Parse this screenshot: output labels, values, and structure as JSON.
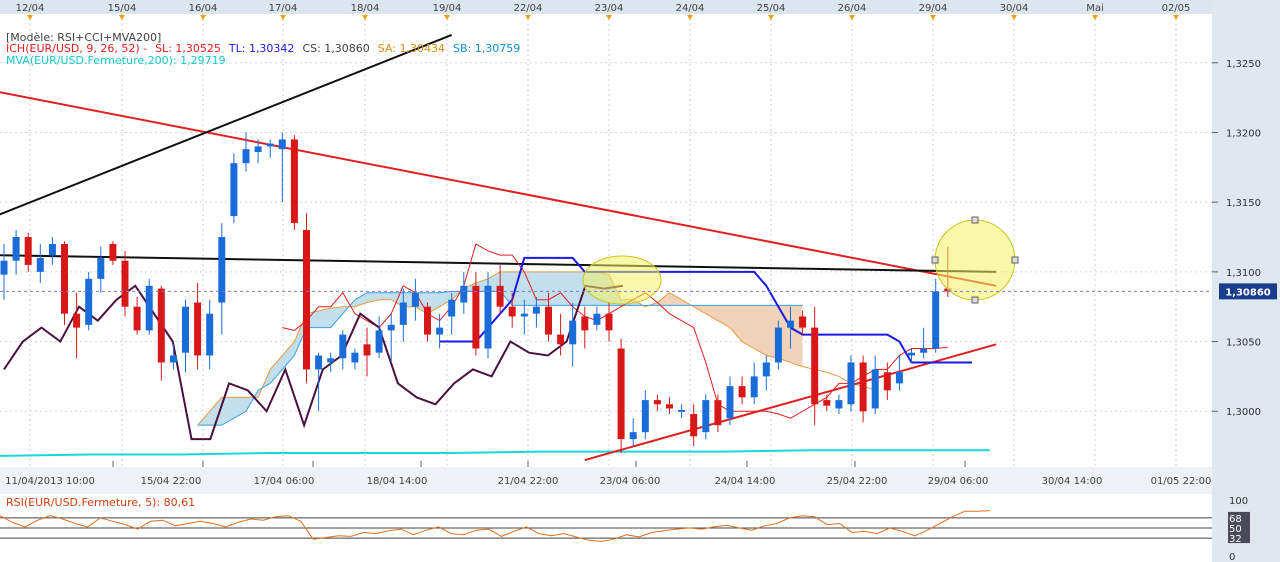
{
  "top_dates": [
    "12/04",
    "15/04",
    "16/04",
    "17/04",
    "18/04",
    "19/04",
    "22/04",
    "23/04",
    "24/04",
    "25/04",
    "26/04",
    "29/04",
    "30/04",
    "Mai",
    "02/05"
  ],
  "bottom_dates": [
    "11/04/2013 10:00",
    "15/04 22:00",
    "17/04 06:00",
    "18/04 14:00",
    "21/04 22:00",
    "23/04 06:00",
    "24/04 14:00",
    "25/04 22:00",
    "29/04 06:00",
    "30/04 14:00",
    "01/05 22:00"
  ],
  "legend": {
    "model": "[Modèle: RSI+CCI+MVA200]",
    "ich": "ICH(EUR/USD, 9, 26, 52) -",
    "sl": "SL: 1,30525",
    "tl": "TL: 1,30342",
    "cs": "CS: 1,30860",
    "sa": "SA: 1,30434",
    "sb": "SB: 1,30759",
    "mva": "MVA(EUR/USD.Fermeture,200): 1,29719",
    "colors": {
      "ich": "#e02020",
      "tl": "#1a1ae0",
      "cs": "#404040",
      "sa": "#e08a20",
      "sb": "#1a8cd8",
      "mva": "#18d8d8"
    }
  },
  "price_axis": {
    "ticks": [
      "1,3250",
      "1,3200",
      "1,3150",
      "1,3100",
      "1,3050",
      "1,3000"
    ],
    "current": "1,30860"
  },
  "rsi": {
    "label": "RSI(EUR/USD.Fermeture, 5): 80,61",
    "ticks": [
      "100",
      "68",
      "50",
      "32",
      "0"
    ]
  },
  "chart_data": {
    "type": "candlestick",
    "pair": "EUR/USD",
    "ylim": [
      1.296,
      1.3285
    ],
    "candles": [
      [
        1.3098,
        1.312,
        1.308,
        1.3108
      ],
      [
        1.3108,
        1.313,
        1.3098,
        1.3125
      ],
      [
        1.3125,
        1.3128,
        1.31,
        1.3105
      ],
      [
        1.31,
        1.312,
        1.3092,
        1.311
      ],
      [
        1.3112,
        1.3125,
        1.3105,
        1.312
      ],
      [
        1.312,
        1.3122,
        1.3062,
        1.307
      ],
      [
        1.307,
        1.3085,
        1.3038,
        1.306
      ],
      [
        1.3062,
        1.31,
        1.3058,
        1.3095
      ],
      [
        1.3095,
        1.3118,
        1.3085,
        1.311
      ],
      [
        1.312,
        1.3122,
        1.3105,
        1.3108
      ],
      [
        1.3108,
        1.3115,
        1.3068,
        1.3075
      ],
      [
        1.3075,
        1.3082,
        1.3055,
        1.3058
      ],
      [
        1.3058,
        1.3095,
        1.3055,
        1.309
      ],
      [
        1.3088,
        1.309,
        1.3022,
        1.3035
      ],
      [
        1.3035,
        1.3048,
        1.303,
        1.304
      ],
      [
        1.3042,
        1.308,
        1.3028,
        1.3075
      ],
      [
        1.3078,
        1.3092,
        1.303,
        1.304
      ],
      [
        1.304,
        1.308,
        1.303,
        1.307
      ],
      [
        1.3078,
        1.3135,
        1.3055,
        1.3125
      ],
      [
        1.314,
        1.3185,
        1.3135,
        1.3178
      ],
      [
        1.3178,
        1.32,
        1.3172,
        1.3188
      ],
      [
        1.3186,
        1.3195,
        1.3178,
        1.319
      ],
      [
        1.319,
        1.3195,
        1.3182,
        1.3192
      ],
      [
        1.3188,
        1.32,
        1.315,
        1.3195
      ],
      [
        1.3195,
        1.3198,
        1.313,
        1.3135
      ],
      [
        1.313,
        1.3142,
        1.302,
        1.303
      ],
      [
        1.303,
        1.3042,
        1.3,
        1.304
      ],
      [
        1.3035,
        1.3042,
        1.3028,
        1.3038
      ],
      [
        1.3038,
        1.3058,
        1.303,
        1.3055
      ],
      [
        1.3035,
        1.3045,
        1.303,
        1.3042
      ],
      [
        1.3048,
        1.306,
        1.3025,
        1.304
      ],
      [
        1.3042,
        1.3068,
        1.3038,
        1.3058
      ],
      [
        1.3058,
        1.307,
        1.3035,
        1.3062
      ],
      [
        1.3062,
        1.3088,
        1.305,
        1.3078
      ],
      [
        1.3075,
        1.3095,
        1.3065,
        1.3085
      ],
      [
        1.3075,
        1.3078,
        1.305,
        1.3055
      ],
      [
        1.3055,
        1.307,
        1.3045,
        1.306
      ],
      [
        1.3068,
        1.3085,
        1.3055,
        1.308
      ],
      [
        1.3078,
        1.31,
        1.307,
        1.309
      ],
      [
        1.309,
        1.31,
        1.304,
        1.3045
      ],
      [
        1.3045,
        1.31,
        1.3038,
        1.309
      ],
      [
        1.309,
        1.3105,
        1.307,
        1.3075
      ],
      [
        1.3075,
        1.3085,
        1.306,
        1.3068
      ],
      [
        1.3068,
        1.308,
        1.3055,
        1.307
      ],
      [
        1.307,
        1.3082,
        1.306,
        1.3075
      ],
      [
        1.3075,
        1.3085,
        1.305,
        1.3055
      ],
      [
        1.3055,
        1.307,
        1.304,
        1.3048
      ],
      [
        1.3048,
        1.3078,
        1.3032,
        1.3065
      ],
      [
        1.3068,
        1.3075,
        1.3045,
        1.3058
      ],
      [
        1.3062,
        1.3075,
        1.3058,
        1.307
      ],
      [
        1.307,
        1.3078,
        1.305,
        1.3058
      ],
      [
        1.3045,
        1.3052,
        1.297,
        1.298
      ],
      [
        1.298,
        1.2995,
        1.2975,
        1.2985
      ],
      [
        1.2985,
        1.3015,
        1.298,
        1.3008
      ],
      [
        1.3008,
        1.3012,
        1.3,
        1.3005
      ],
      [
        1.3005,
        1.301,
        1.2998,
        1.3002
      ],
      [
        1.3,
        1.3005,
        1.2995,
        1.3001
      ],
      [
        1.2998,
        1.3005,
        1.2975,
        1.2982
      ],
      [
        1.2985,
        1.3012,
        1.298,
        1.3008
      ],
      [
        1.3008,
        1.3012,
        1.2985,
        1.299
      ],
      [
        1.2995,
        1.3025,
        1.299,
        1.3018
      ],
      [
        1.3018,
        1.3025,
        1.3005,
        1.301
      ],
      [
        1.301,
        1.3035,
        1.3005,
        1.3025
      ],
      [
        1.3025,
        1.304,
        1.3015,
        1.3035
      ],
      [
        1.3035,
        1.3065,
        1.303,
        1.306
      ],
      [
        1.306,
        1.3075,
        1.3045,
        1.3065
      ],
      [
        1.3068,
        1.3072,
        1.3055,
        1.306
      ],
      [
        1.306,
        1.3075,
        1.299,
        1.3005
      ],
      [
        1.3008,
        1.3012,
        1.3,
        1.3004
      ],
      [
        1.3002,
        1.3012,
        1.2998,
        1.3008
      ],
      [
        1.3005,
        1.304,
        1.3,
        1.3035
      ],
      [
        1.3035,
        1.304,
        1.2992,
        1.3
      ],
      [
        1.3002,
        1.304,
        1.2998,
        1.303
      ],
      [
        1.3028,
        1.3035,
        1.3008,
        1.3015
      ],
      [
        1.302,
        1.304,
        1.3015,
        1.3028
      ],
      [
        1.304,
        1.3045,
        1.3035,
        1.3042
      ],
      [
        1.3042,
        1.306,
        1.3038,
        1.3045
      ],
      [
        1.3045,
        1.3095,
        1.3042,
        1.3086
      ],
      [
        1.3088,
        1.3118,
        1.3082,
        1.3086
      ]
    ],
    "tenkan": [
      1.306,
      1.3058,
      1.3065,
      1.3075,
      1.3075,
      1.3085,
      1.307,
      1.3065,
      1.306,
      1.307,
      1.309,
      1.3085,
      1.307,
      1.3065,
      1.3075,
      1.309,
      1.312,
      1.3115,
      1.3112,
      1.3112,
      1.31,
      1.308,
      1.308,
      1.3085,
      1.3075,
      1.3068,
      1.3065,
      1.307,
      1.3075,
      1.308,
      1.3085,
      1.3078,
      1.307,
      1.3065,
      1.306,
      1.3035,
      1.3005,
      1.3,
      1.3,
      1.3,
      1.3,
      1.2998,
      1.2995,
      1.3,
      1.3005,
      1.301,
      1.302,
      1.302,
      1.3025,
      1.303,
      1.303,
      1.304,
      1.3045,
      1.3045,
      1.3045,
      1.3046
    ],
    "kijun": [
      1.305,
      1.305,
      1.305,
      1.305,
      1.306,
      1.307,
      1.308,
      1.311,
      1.311,
      1.311,
      1.311,
      1.311,
      1.31,
      1.31,
      1.31,
      1.31,
      1.31,
      1.31,
      1.31,
      1.31,
      1.31,
      1.31,
      1.31,
      1.31,
      1.31,
      1.31,
      1.31,
      1.309,
      1.3075,
      1.306,
      1.3055,
      1.3055,
      1.3055,
      1.3055,
      1.3055,
      1.3055,
      1.3055,
      1.3055,
      1.305,
      1.3035,
      1.3035,
      1.3035,
      1.3035,
      1.3035,
      1.3035
    ],
    "chikou": [
      1.303,
      1.305,
      1.306,
      1.305,
      1.3075,
      1.3065,
      1.308,
      1.309,
      1.307,
      1.305,
      1.298,
      1.298,
      1.302,
      1.3015,
      1.3,
      1.303,
      1.299,
      1.303,
      1.304,
      1.307,
      1.306,
      1.302,
      1.301,
      1.3005,
      1.302,
      1.303,
      1.3025,
      1.305,
      1.3042,
      1.304,
      1.305,
      1.309,
      1.3088,
      1.309
    ],
    "span_a": [
      1.299,
      1.3,
      1.301,
      1.301,
      1.301,
      1.301,
      1.303,
      1.304,
      1.305,
      1.307,
      1.3072,
      1.3074,
      1.3075,
      1.3075,
      1.3078,
      1.308,
      1.308,
      1.3075,
      1.3075,
      1.307,
      1.3075,
      1.308,
      1.3088,
      1.3092,
      1.3095,
      1.31,
      1.31,
      1.31,
      1.31,
      1.31,
      1.31,
      1.31,
      1.31,
      1.31,
      1.3098,
      1.308,
      1.308,
      1.3075,
      1.3078,
      1.3085,
      1.308,
      1.3075,
      1.307,
      1.3065,
      1.306,
      1.305,
      1.3045,
      1.304,
      1.3038,
      1.3035,
      1.3032,
      1.303,
      1.3028,
      1.3025,
      1.302,
      1.3018,
      1.3015
    ],
    "span_b": [
      1.299,
      1.299,
      1.299,
      1.2995,
      1.3,
      1.3015,
      1.302,
      1.303,
      1.304,
      1.306,
      1.306,
      1.306,
      1.307,
      1.308,
      1.3085,
      1.3085,
      1.3085,
      1.3085,
      1.3085,
      1.3085,
      1.3085,
      1.3086,
      1.3086,
      1.3086,
      1.3086,
      1.3086,
      1.3076,
      1.3076,
      1.3076,
      1.3076,
      1.3076,
      1.3076,
      1.3076,
      1.3076,
      1.3076,
      1.3076,
      1.3076,
      1.3076,
      1.3076,
      1.3076,
      1.3076,
      1.3076,
      1.3076,
      1.3076,
      1.3076,
      1.3076,
      1.3076,
      1.3076,
      1.3076,
      1.3076,
      1.3076
    ],
    "mva200": [
      1.2968,
      1.2969,
      1.2969,
      1.297,
      1.297,
      1.297,
      1.2971,
      1.2971,
      1.2971,
      1.2972,
      1.2972,
      1.2972
    ],
    "trendlines": [
      {
        "name": "resistance",
        "from": [
          -1,
          1.323
        ],
        "to": [
          82,
          1.309
        ],
        "color": "#e02020"
      },
      {
        "name": "support",
        "from": [
          48,
          1.2965
        ],
        "to": [
          82,
          1.3048
        ],
        "color": "#e02020"
      },
      {
        "name": "upper-channel",
        "from": [
          -1,
          1.3139
        ],
        "to": [
          37,
          1.327
        ],
        "color": "#101010"
      },
      {
        "name": "horizontal",
        "from": [
          -1,
          1.3112
        ],
        "to": [
          82,
          1.31
        ],
        "color": "#101010"
      }
    ],
    "rsi_values": [
      72,
      60,
      52,
      64,
      72,
      66,
      58,
      52,
      68,
      62,
      56,
      48,
      62,
      64,
      54,
      58,
      62,
      58,
      52,
      60,
      66,
      64,
      70,
      72,
      62,
      30,
      33,
      36,
      35,
      42,
      40,
      45,
      48,
      38,
      46,
      52,
      40,
      38,
      46,
      48,
      35,
      44,
      52,
      40,
      36,
      40,
      34,
      28,
      26,
      30,
      38,
      34,
      42,
      45,
      48,
      50,
      48,
      52,
      55,
      50,
      46,
      54,
      58,
      68,
      72,
      70,
      56,
      58,
      42,
      44,
      40,
      50,
      44,
      36,
      46,
      58,
      70,
      80,
      80,
      81
    ]
  }
}
